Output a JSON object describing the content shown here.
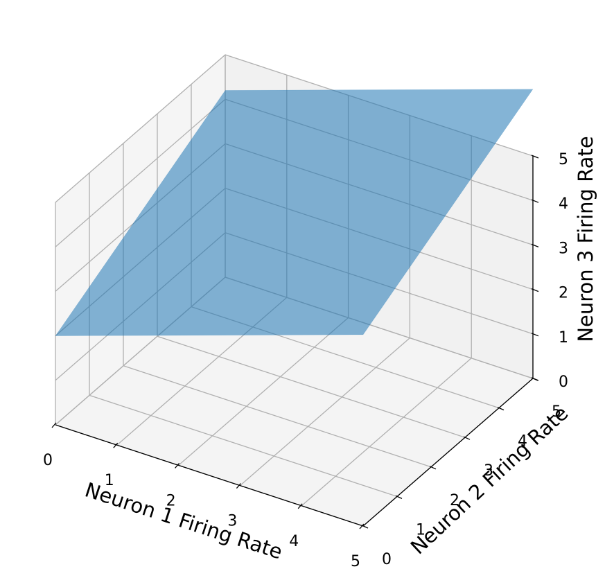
{
  "chart_data": {
    "type": "surface3d",
    "title": "",
    "axes": {
      "x": {
        "label": "Neuron 1 Firing Rate",
        "range": [
          0,
          5
        ],
        "ticks": [
          "0",
          "1",
          "2",
          "3",
          "4",
          "5"
        ]
      },
      "y": {
        "label": "Neuron 2 Firing Rate",
        "range": [
          0,
          5
        ],
        "ticks": [
          "0",
          "1",
          "2",
          "3",
          "4",
          "5"
        ]
      },
      "z": {
        "label": "Neuron 3 Firing Rate",
        "range": [
          0,
          5
        ],
        "ticks": [
          "0",
          "1",
          "2",
          "3",
          "4",
          "5"
        ]
      }
    },
    "surface": {
      "kind": "plane",
      "corners": [
        {
          "x": 0,
          "y": 0,
          "z": 2.0
        },
        {
          "x": 5,
          "y": 0,
          "z": 4.3
        },
        {
          "x": 5,
          "y": 5,
          "z": 6.5
        },
        {
          "x": 0,
          "y": 5,
          "z": 4.2
        }
      ],
      "color": "#1f77b4",
      "opacity": 0.55
    },
    "pane_color": "#f2f2f2",
    "grid_color": "#b0b0b0",
    "grid": true
  }
}
